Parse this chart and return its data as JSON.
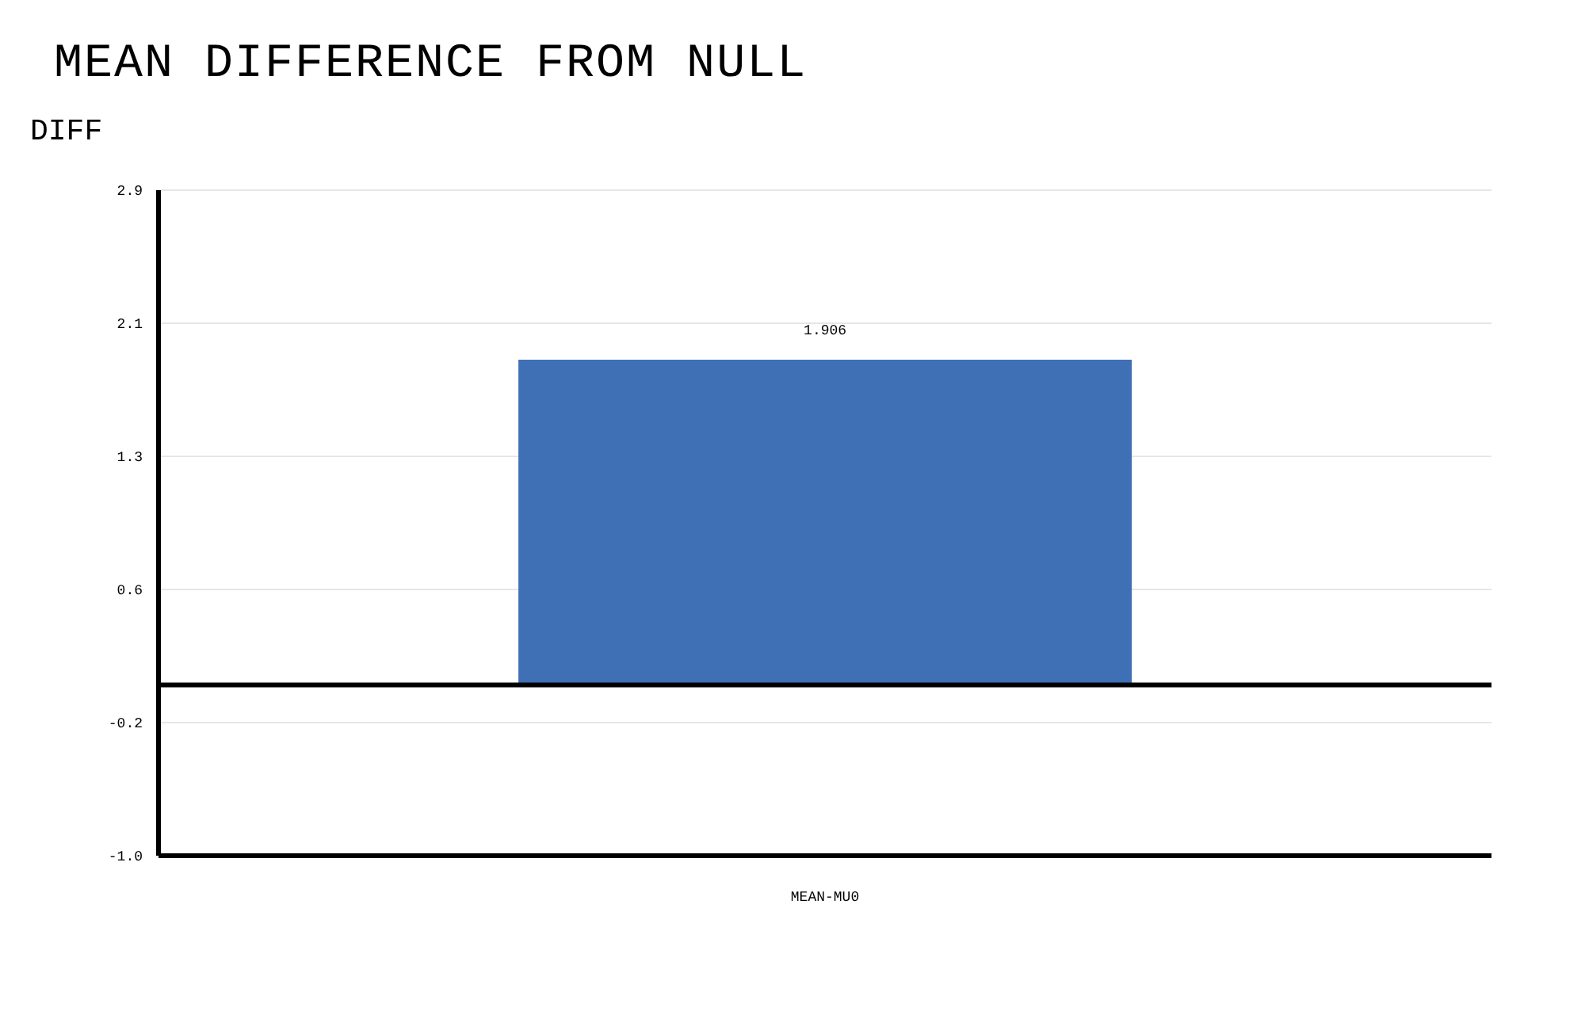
{
  "chart_data": {
    "type": "bar",
    "title": "MEAN DIFFERENCE FROM NULL",
    "ylabel": "DIFF",
    "categories": [
      "MEAN-MU0"
    ],
    "values": [
      1.906
    ],
    "color": "#3f6fb5",
    "ylim": [
      -1.0,
      2.9
    ],
    "yticks": [
      {
        "value": -1.0,
        "label": "-1.0"
      },
      {
        "value": -0.22,
        "label": "-0.2"
      },
      {
        "value": 0.56,
        "label": "0.6"
      },
      {
        "value": 1.34,
        "label": "1.3"
      },
      {
        "value": 2.12,
        "label": "2.1"
      },
      {
        "value": 2.9,
        "label": "2.9"
      }
    ],
    "grid": "y",
    "data_labels": true,
    "ref_lines": [
      {
        "axis": "y",
        "value": 0,
        "color": "#000000"
      }
    ]
  }
}
